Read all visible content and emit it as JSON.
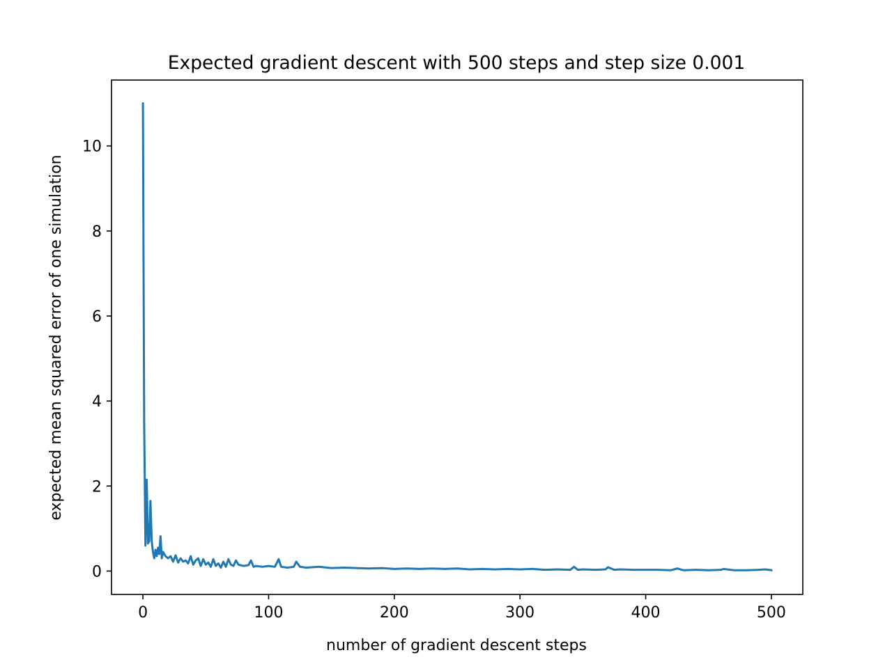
{
  "chart_data": {
    "type": "line",
    "title": "Expected gradient descent with 500 steps and step size 0.001",
    "xlabel": "number of gradient descent steps",
    "ylabel": "expected mean squared error of one simulation",
    "xlim": [
      -25,
      525
    ],
    "ylim": [
      -0.55,
      11.55
    ],
    "xticks": [
      0,
      100,
      200,
      300,
      400,
      500
    ],
    "yticks": [
      0,
      2,
      4,
      6,
      8,
      10
    ],
    "grid": false,
    "legend": "none",
    "series": [
      {
        "color": "#1f77b4",
        "x": [
          0,
          1,
          2,
          3,
          4,
          5,
          6,
          7,
          8,
          9,
          10,
          11,
          12,
          13,
          14,
          15,
          16,
          18,
          20,
          22,
          24,
          26,
          28,
          30,
          32,
          34,
          36,
          38,
          40,
          42,
          44,
          46,
          48,
          50,
          52,
          54,
          56,
          58,
          60,
          62,
          64,
          66,
          68,
          70,
          72,
          74,
          76,
          80,
          84,
          86,
          88,
          90,
          95,
          100,
          105,
          108,
          110,
          115,
          120,
          122,
          125,
          130,
          140,
          150,
          160,
          170,
          180,
          190,
          200,
          210,
          220,
          230,
          240,
          250,
          260,
          270,
          280,
          290,
          300,
          310,
          320,
          330,
          340,
          343,
          346,
          350,
          360,
          368,
          370,
          375,
          380,
          390,
          400,
          410,
          420,
          425,
          430,
          440,
          450,
          460,
          462,
          470,
          480,
          490,
          495,
          500
        ],
        "y": [
          11.0,
          3.5,
          0.6,
          2.15,
          0.65,
          0.7,
          1.65,
          0.7,
          0.45,
          0.3,
          0.5,
          0.35,
          0.55,
          0.4,
          0.82,
          0.3,
          0.45,
          0.35,
          0.3,
          0.35,
          0.22,
          0.37,
          0.2,
          0.3,
          0.22,
          0.25,
          0.18,
          0.35,
          0.15,
          0.25,
          0.3,
          0.12,
          0.28,
          0.15,
          0.2,
          0.1,
          0.28,
          0.12,
          0.18,
          0.08,
          0.22,
          0.1,
          0.28,
          0.15,
          0.12,
          0.25,
          0.15,
          0.12,
          0.14,
          0.25,
          0.1,
          0.12,
          0.1,
          0.12,
          0.1,
          0.28,
          0.1,
          0.08,
          0.1,
          0.22,
          0.1,
          0.08,
          0.1,
          0.07,
          0.08,
          0.07,
          0.06,
          0.07,
          0.05,
          0.06,
          0.05,
          0.06,
          0.05,
          0.06,
          0.04,
          0.05,
          0.04,
          0.05,
          0.04,
          0.05,
          0.03,
          0.04,
          0.03,
          0.1,
          0.03,
          0.04,
          0.03,
          0.04,
          0.09,
          0.03,
          0.04,
          0.03,
          0.03,
          0.03,
          0.02,
          0.06,
          0.02,
          0.03,
          0.02,
          0.03,
          0.05,
          0.02,
          0.02,
          0.03,
          0.04,
          0.02
        ]
      }
    ]
  }
}
